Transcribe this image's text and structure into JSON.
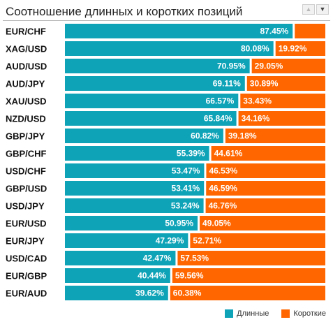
{
  "header": {
    "title": "Соотношение длинных и коротких позиций",
    "up_icon": "triangle-up-icon",
    "down_icon": "triangle-down-icon"
  },
  "colors": {
    "long": "#0fa3b8",
    "short": "#ff6600"
  },
  "legend": {
    "long_label": "Длинные",
    "short_label": "Короткие"
  },
  "chart_data": {
    "type": "bar",
    "stacked": true,
    "orientation": "horizontal",
    "title": "Соотношение длинных и коротких позиций",
    "xlim": [
      0,
      100
    ],
    "legend_position": "bottom-right",
    "categories": [
      "EUR/CHF",
      "XAG/USD",
      "AUD/USD",
      "AUD/JPY",
      "XAU/USD",
      "NZD/USD",
      "GBP/JPY",
      "GBP/CHF",
      "USD/CHF",
      "GBP/USD",
      "USD/JPY",
      "EUR/USD",
      "EUR/JPY",
      "USD/CAD",
      "EUR/GBP",
      "EUR/AUD"
    ],
    "series": [
      {
        "name": "Длинные",
        "values": [
          87.45,
          80.08,
          70.95,
          69.11,
          66.57,
          65.84,
          60.82,
          55.39,
          53.47,
          53.41,
          53.24,
          50.95,
          47.29,
          42.47,
          40.44,
          39.62
        ],
        "labels": [
          "87.45%",
          "80.08%",
          "70.95%",
          "69.11%",
          "66.57%",
          "65.84%",
          "60.82%",
          "55.39%",
          "53.47%",
          "53.41%",
          "53.24%",
          "50.95%",
          "47.29%",
          "42.47%",
          "40.44%",
          "39.62%"
        ]
      },
      {
        "name": "Короткие",
        "values": [
          12.55,
          19.92,
          29.05,
          30.89,
          33.43,
          34.16,
          39.18,
          44.61,
          46.53,
          46.59,
          46.76,
          49.05,
          52.71,
          57.53,
          59.56,
          60.38
        ],
        "labels": [
          "",
          "19.92%",
          "29.05%",
          "30.89%",
          "33.43%",
          "34.16%",
          "39.18%",
          "44.61%",
          "46.53%",
          "46.59%",
          "46.76%",
          "49.05%",
          "52.71%",
          "57.53%",
          "59.56%",
          "60.38%"
        ]
      }
    ]
  }
}
